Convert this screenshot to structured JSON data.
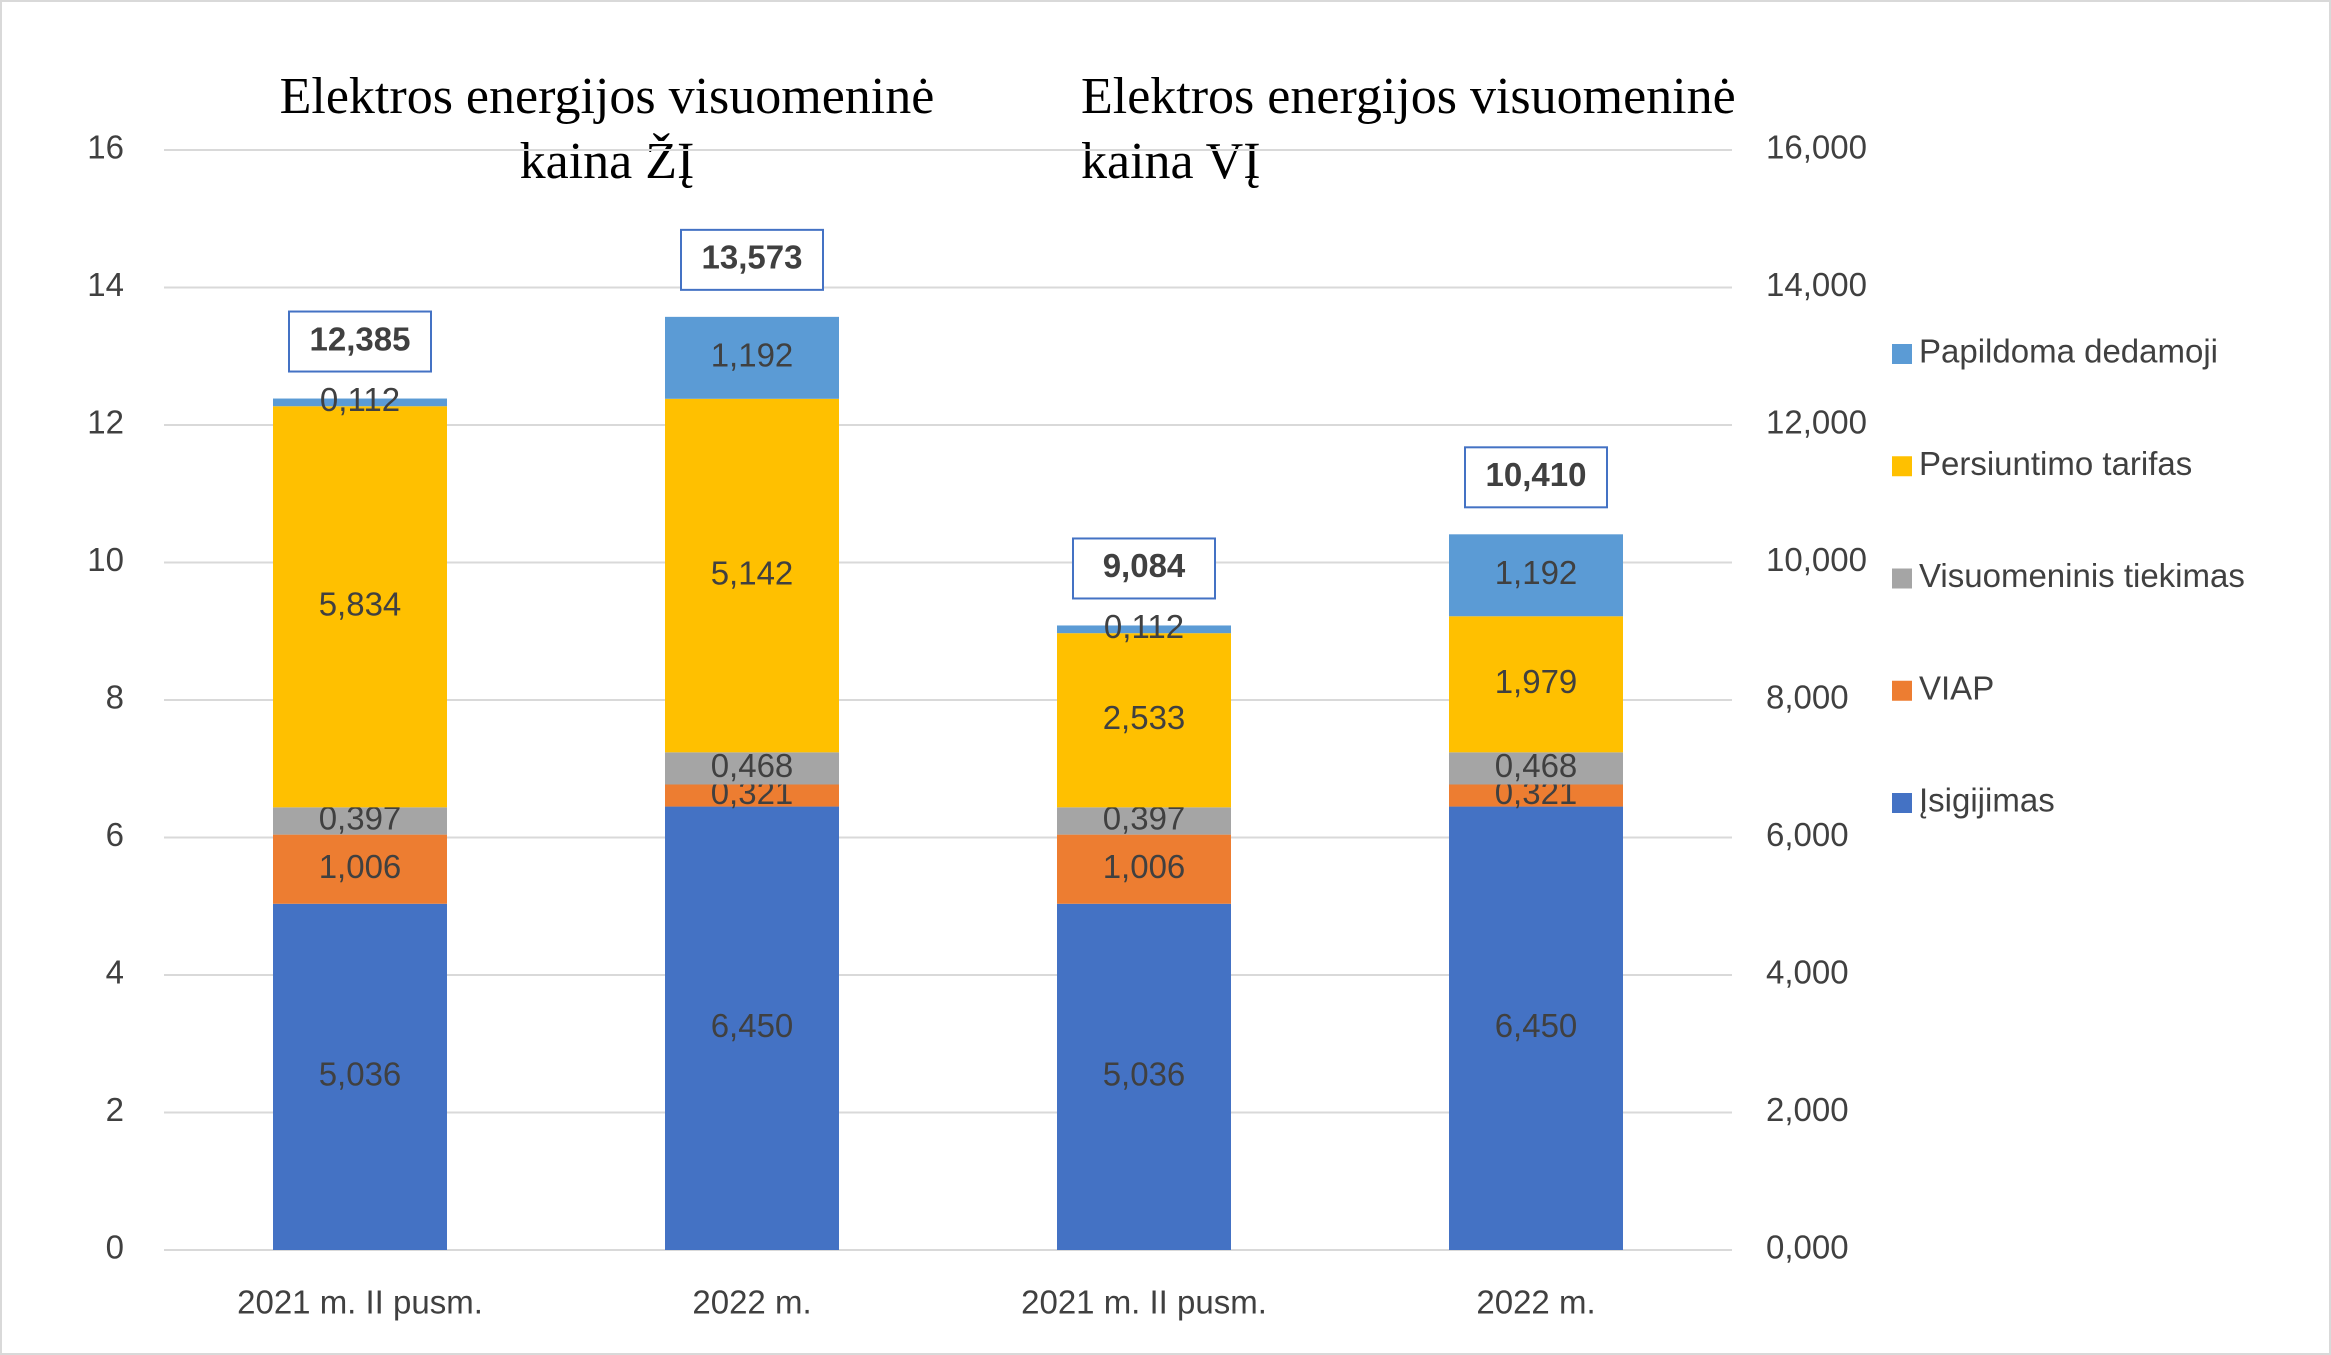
{
  "chart_data": {
    "type": "stacked_bar",
    "titles": [
      [
        "Elektros energijos visuomeninė",
        "kaina ŽĮ"
      ],
      [
        "Elektros energijos visuomeninė",
        "kaina VĮ"
      ]
    ],
    "categories": [
      "2021 m. II pusm.",
      "2022 m.",
      "2021 m. II pusm.",
      "2022 m."
    ],
    "series": [
      {
        "name": "Įsigijimas",
        "color": "#4472c4",
        "values": [
          5.036,
          6.45,
          5.036,
          6.45
        ],
        "value_labels": [
          "5,036",
          "6,450",
          "5,036",
          "6,450"
        ]
      },
      {
        "name": "VIAP",
        "color": "#ed7d31",
        "values": [
          1.006,
          0.321,
          1.006,
          0.321
        ],
        "value_labels": [
          "1,006",
          "0,321",
          "1,006",
          "0,321"
        ]
      },
      {
        "name": "Visuomeninis tiekimas",
        "color": "#a5a5a5",
        "values": [
          0.397,
          0.468,
          0.397,
          0.468
        ],
        "value_labels": [
          "0,397",
          "0,468",
          "0,397",
          "0,468"
        ]
      },
      {
        "name": "Persiuntimo tarifas",
        "color": "#ffc000",
        "values": [
          5.834,
          5.142,
          2.533,
          1.979
        ],
        "value_labels": [
          "5,834",
          "5,142",
          "2,533",
          "1,979"
        ]
      },
      {
        "name": "Papildoma dedamoji",
        "color": "#5b9bd5",
        "values": [
          0.112,
          1.192,
          0.112,
          1.192
        ],
        "value_labels": [
          "0,112",
          "1,192",
          "0,112",
          "1,192"
        ]
      }
    ],
    "totals": {
      "values": [
        12.385,
        13.573,
        9.084,
        10.41
      ],
      "value_labels": [
        "12,385",
        "13,573",
        "9,084",
        "10,410"
      ]
    },
    "ylim": [
      0,
      16
    ],
    "yticks": [
      0,
      2,
      4,
      6,
      8,
      10,
      12,
      14,
      16
    ],
    "y2lim": [
      0,
      16
    ],
    "y2ticks": [
      {
        "value": 0,
        "label": "0,000"
      },
      {
        "value": 2,
        "label": "2,000"
      },
      {
        "value": 4,
        "label": "4,000"
      },
      {
        "value": 6,
        "label": "6,000"
      },
      {
        "value": 8,
        "label": "8,000"
      },
      {
        "value": 10,
        "label": "10,000"
      },
      {
        "value": 12,
        "label": "12,000"
      },
      {
        "value": 14,
        "label": "14,000"
      },
      {
        "value": 16,
        "label": "16,000"
      }
    ],
    "grid": true,
    "legend": "right"
  }
}
